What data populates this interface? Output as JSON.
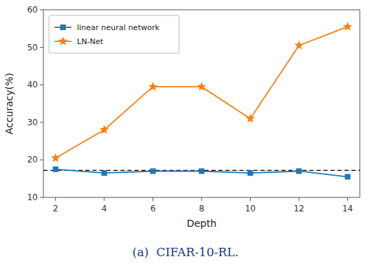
{
  "chart_data": {
    "type": "line",
    "x": [
      2,
      4,
      6,
      8,
      10,
      12,
      14
    ],
    "series": [
      {
        "name": "linear neural network",
        "color": "#1f77b4",
        "marker": "square",
        "values": [
          17.5,
          16.5,
          17.0,
          17.0,
          16.5,
          17.0,
          15.5
        ]
      },
      {
        "name": "LN-Net",
        "color": "#ff7f0e",
        "marker": "star",
        "values": [
          20.5,
          28.0,
          39.5,
          39.5,
          31.0,
          50.5,
          55.5
        ]
      }
    ],
    "hline": {
      "y": 17.2,
      "color": "#000000",
      "line_style": "dashed"
    },
    "xlabel": "Depth",
    "ylabel": "Accuracy(%)",
    "caption": "(a)  CIFAR-10-RL.",
    "caption_color": "#1a3a8a",
    "xlim": [
      1.5,
      14.5
    ],
    "ylim": [
      10,
      60
    ],
    "xticks": [
      2,
      4,
      6,
      8,
      10,
      12,
      14
    ],
    "yticks": [
      10,
      20,
      30,
      40,
      50,
      60
    ],
    "grid": false,
    "legend": "upper-left"
  }
}
